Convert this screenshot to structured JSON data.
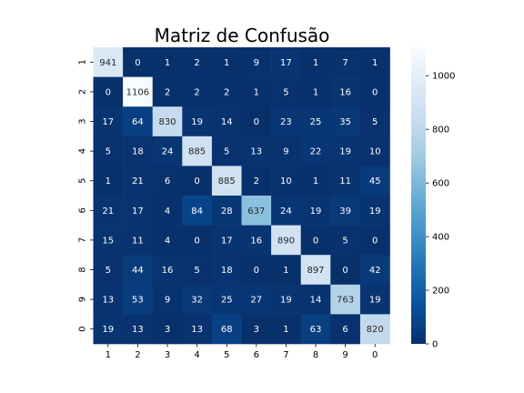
{
  "chart_data": {
    "type": "heatmap",
    "title": "Matriz de Confusão",
    "x_tick_labels": [
      "1",
      "2",
      "3",
      "4",
      "5",
      "6",
      "7",
      "8",
      "9",
      "0"
    ],
    "y_tick_labels": [
      "1",
      "2",
      "3",
      "4",
      "5",
      "6",
      "7",
      "8",
      "9",
      "0"
    ],
    "matrix": [
      [
        941,
        0,
        1,
        2,
        1,
        9,
        17,
        1,
        7,
        1
      ],
      [
        0,
        1106,
        2,
        2,
        2,
        1,
        5,
        1,
        16,
        0
      ],
      [
        17,
        64,
        830,
        19,
        14,
        0,
        23,
        25,
        35,
        5
      ],
      [
        5,
        18,
        24,
        885,
        5,
        13,
        9,
        22,
        19,
        10
      ],
      [
        1,
        21,
        6,
        0,
        885,
        2,
        10,
        1,
        11,
        45
      ],
      [
        21,
        17,
        4,
        84,
        28,
        637,
        24,
        19,
        39,
        19
      ],
      [
        15,
        11,
        4,
        0,
        17,
        16,
        890,
        0,
        5,
        0
      ],
      [
        5,
        44,
        16,
        5,
        18,
        0,
        1,
        897,
        0,
        42
      ],
      [
        13,
        53,
        9,
        32,
        25,
        27,
        19,
        14,
        763,
        19
      ],
      [
        19,
        13,
        3,
        13,
        68,
        3,
        1,
        63,
        6,
        820
      ]
    ],
    "value_range": [
      0,
      1106
    ],
    "colormap": "Blues_r",
    "colorbar_ticks": [
      0,
      200,
      400,
      600,
      800,
      1000
    ],
    "annotations": true,
    "grid": false
  }
}
